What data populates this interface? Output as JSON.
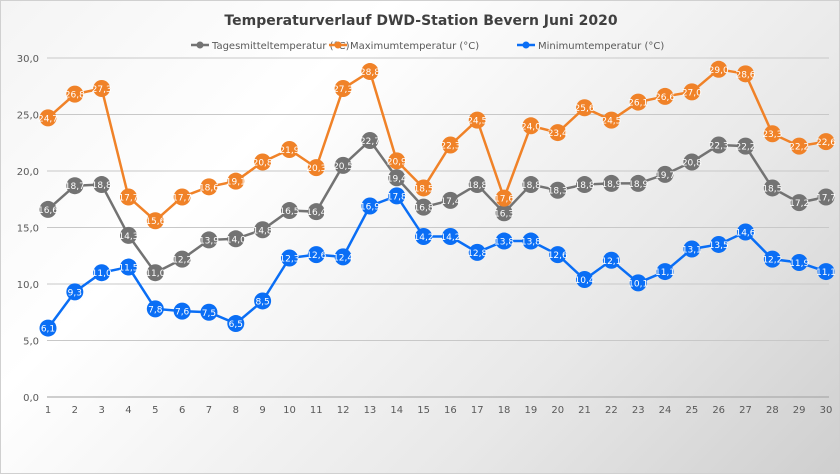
{
  "chart_data": {
    "type": "line",
    "title": "Temperaturverlauf  DWD-Station  Bevern Juni 2020",
    "xlabel": "",
    "ylabel": "",
    "ylim": [
      0,
      30
    ],
    "yticks": [
      "0,0",
      "5,0",
      "10,0",
      "15,0",
      "20,0",
      "25,0",
      "30,0"
    ],
    "x": [
      1,
      2,
      3,
      4,
      5,
      6,
      7,
      8,
      9,
      10,
      11,
      12,
      13,
      14,
      15,
      16,
      17,
      18,
      19,
      20,
      21,
      22,
      23,
      24,
      25,
      26,
      27,
      28,
      29,
      30
    ],
    "grid": true,
    "legend": "top",
    "series": [
      {
        "name": "Tagesmitteltemperatur (°C)",
        "color": "#737373",
        "values": [
          16.6,
          18.7,
          18.8,
          14.3,
          11.0,
          12.2,
          13.9,
          14.0,
          14.8,
          16.5,
          16.4,
          20.5,
          22.7,
          19.4,
          16.8,
          17.4,
          18.8,
          16.3,
          18.8,
          18.3,
          18.8,
          18.9,
          18.9,
          19.7,
          20.8,
          22.3,
          22.2,
          18.5,
          17.2,
          17.7
        ]
      },
      {
        "name": "Maximumtemperatur (°C)",
        "color": "#f08228",
        "values": [
          24.7,
          26.8,
          27.3,
          17.7,
          15.6,
          17.7,
          18.6,
          19.1,
          20.8,
          21.9,
          20.3,
          27.3,
          28.8,
          20.9,
          18.5,
          22.3,
          24.5,
          17.6,
          24.0,
          23.4,
          25.6,
          24.5,
          26.1,
          26.6,
          27.0,
          29.0,
          28.6,
          23.3,
          22.2,
          22.6
        ]
      },
      {
        "name": "Minimumtemperatur (°C)",
        "color": "#0a6ef5",
        "values": [
          6.1,
          9.3,
          11.0,
          11.5,
          7.8,
          7.6,
          7.5,
          6.5,
          8.5,
          12.3,
          12.6,
          12.4,
          16.9,
          17.8,
          14.2,
          14.2,
          12.8,
          13.8,
          13.8,
          12.6,
          10.4,
          12.1,
          10.1,
          11.1,
          13.1,
          13.5,
          14.6,
          12.2,
          11.9,
          11.1
        ]
      }
    ]
  }
}
